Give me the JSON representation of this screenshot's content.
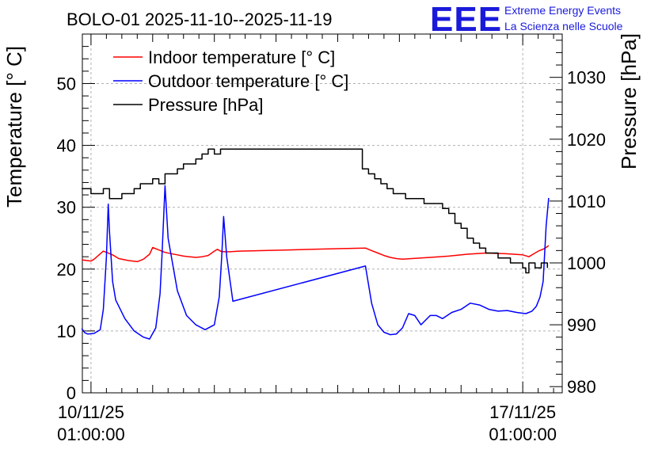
{
  "logo": {
    "mark": "EEE",
    "line1": "Extreme Energy Events",
    "line2": "La Scienza nelle Scuole",
    "color": "#1a1adb"
  },
  "chart_data": {
    "type": "line",
    "title": "BOLO-01 2025-11-10--2025-11-19",
    "ylabel": "Temperature [° C]",
    "y2label": "Pressure [hPa]",
    "ylim": [
      0,
      58
    ],
    "y2lim": [
      979,
      1037
    ],
    "yticks": [
      0,
      10,
      20,
      30,
      40,
      50
    ],
    "y2ticks": [
      980,
      990,
      1000,
      1010,
      1020,
      1030
    ],
    "xlim": [
      -0.14,
      7.64
    ],
    "xticks": [
      {
        "value": 0,
        "line1": "10/11/25",
        "line2": "01:00:00"
      },
      {
        "value": 7,
        "line1": "17/11/25",
        "line2": "01:00:00"
      }
    ],
    "grid": true,
    "legend_position": "top-left",
    "series": [
      {
        "name": "Indoor temperature [° C]",
        "color": "#ff0000",
        "axis": "left",
        "x": [
          -0.15,
          0.0,
          0.05,
          0.2,
          0.35,
          0.45,
          0.6,
          0.75,
          0.85,
          0.95,
          1.0,
          1.1,
          1.2,
          1.3,
          1.4,
          1.5,
          1.6,
          1.7,
          1.8,
          1.9,
          2.0,
          2.05,
          2.1,
          2.15,
          2.25,
          2.4,
          2.8,
          3.2,
          3.6,
          4.0,
          4.45,
          4.55,
          4.65,
          4.75,
          4.85,
          4.95,
          5.05,
          5.2,
          5.5,
          5.8,
          6.1,
          6.4,
          6.7,
          7.0,
          7.1,
          7.2,
          7.27,
          7.35,
          7.42
        ],
        "values": [
          21.5,
          21.3,
          21.6,
          22.9,
          22.3,
          21.7,
          21.4,
          21.2,
          21.6,
          22.4,
          23.5,
          23.1,
          22.7,
          22.5,
          22.3,
          22.1,
          22.0,
          21.9,
          22.0,
          22.2,
          22.9,
          23.2,
          22.9,
          22.8,
          22.8,
          22.9,
          23.0,
          23.1,
          23.2,
          23.3,
          23.4,
          23.0,
          22.6,
          22.2,
          21.9,
          21.7,
          21.6,
          21.7,
          21.9,
          22.1,
          22.4,
          22.6,
          22.5,
          22.3,
          22.0,
          22.6,
          23.0,
          23.3,
          23.8
        ]
      },
      {
        "name": "Outdoor temperature [° C]",
        "color": "#0000ff",
        "axis": "left",
        "x": [
          -0.15,
          -0.1,
          -0.05,
          0.05,
          0.15,
          0.2,
          0.25,
          0.28,
          0.3,
          0.35,
          0.4,
          0.55,
          0.7,
          0.85,
          0.95,
          1.05,
          1.12,
          1.15,
          1.2,
          1.25,
          1.4,
          1.55,
          1.7,
          1.85,
          2.0,
          2.08,
          2.12,
          2.15,
          2.2,
          2.3,
          4.45,
          4.55,
          4.65,
          4.75,
          4.85,
          4.95,
          5.05,
          5.15,
          5.25,
          5.35,
          5.5,
          5.6,
          5.7,
          5.85,
          6.0,
          6.15,
          6.3,
          6.45,
          6.6,
          6.75,
          6.9,
          7.05,
          7.15,
          7.22,
          7.28,
          7.33,
          7.38,
          7.42
        ],
        "values": [
          10.4,
          9.7,
          9.5,
          9.6,
          10.2,
          13.5,
          22.0,
          30.5,
          26.0,
          18.0,
          15.0,
          12.0,
          10.0,
          9.0,
          8.7,
          10.5,
          16.0,
          22.0,
          33.5,
          25.0,
          16.5,
          12.5,
          11.0,
          10.2,
          11.0,
          15.5,
          22.0,
          28.5,
          22.0,
          14.8,
          20.5,
          14.5,
          11.0,
          9.8,
          9.4,
          9.5,
          10.5,
          12.8,
          12.5,
          11.0,
          12.5,
          12.5,
          12.0,
          13.0,
          13.5,
          14.5,
          14.2,
          13.5,
          13.2,
          13.3,
          13.0,
          12.8,
          13.2,
          14.0,
          15.5,
          18.0,
          27.0,
          31.5
        ]
      },
      {
        "name": "Pressure [hPa]",
        "color": "#000000",
        "axis": "right",
        "x": [
          -0.15,
          -0.05,
          0.0,
          0.1,
          0.2,
          0.3,
          0.4,
          0.5,
          0.6,
          0.7,
          0.8,
          0.9,
          1.0,
          1.1,
          1.2,
          1.3,
          1.4,
          1.5,
          1.6,
          1.7,
          1.8,
          1.9,
          2.0,
          2.1,
          2.2,
          2.3,
          4.4,
          4.5,
          4.6,
          4.7,
          4.8,
          4.9,
          5.0,
          5.1,
          5.2,
          5.3,
          5.4,
          5.5,
          5.6,
          5.7,
          5.8,
          5.9,
          6.0,
          6.1,
          6.2,
          6.3,
          6.4,
          6.5,
          6.6,
          6.7,
          6.8,
          6.9,
          7.0,
          7.05,
          7.1,
          7.2,
          7.3,
          7.4
        ],
        "values": [
          1012.0,
          1012.0,
          1011.2,
          1011.2,
          1012.0,
          1010.4,
          1010.4,
          1011.2,
          1011.2,
          1012.0,
          1012.8,
          1012.8,
          1013.6,
          1012.8,
          1014.4,
          1014.4,
          1015.2,
          1016.0,
          1016.0,
          1016.8,
          1017.6,
          1018.4,
          1017.6,
          1018.4,
          1018.4,
          1018.4,
          1015.2,
          1014.4,
          1013.6,
          1012.8,
          1012.0,
          1011.2,
          1011.2,
          1010.4,
          1010.4,
          1010.4,
          1009.6,
          1009.6,
          1009.6,
          1008.8,
          1008.0,
          1006.4,
          1005.6,
          1004.0,
          1003.2,
          1002.4,
          1001.6,
          1001.6,
          1000.8,
          1000.8,
          1000.0,
          1000.0,
          999.2,
          998.4,
          1000.0,
          999.2,
          1000.0,
          999.2
        ]
      }
    ]
  }
}
